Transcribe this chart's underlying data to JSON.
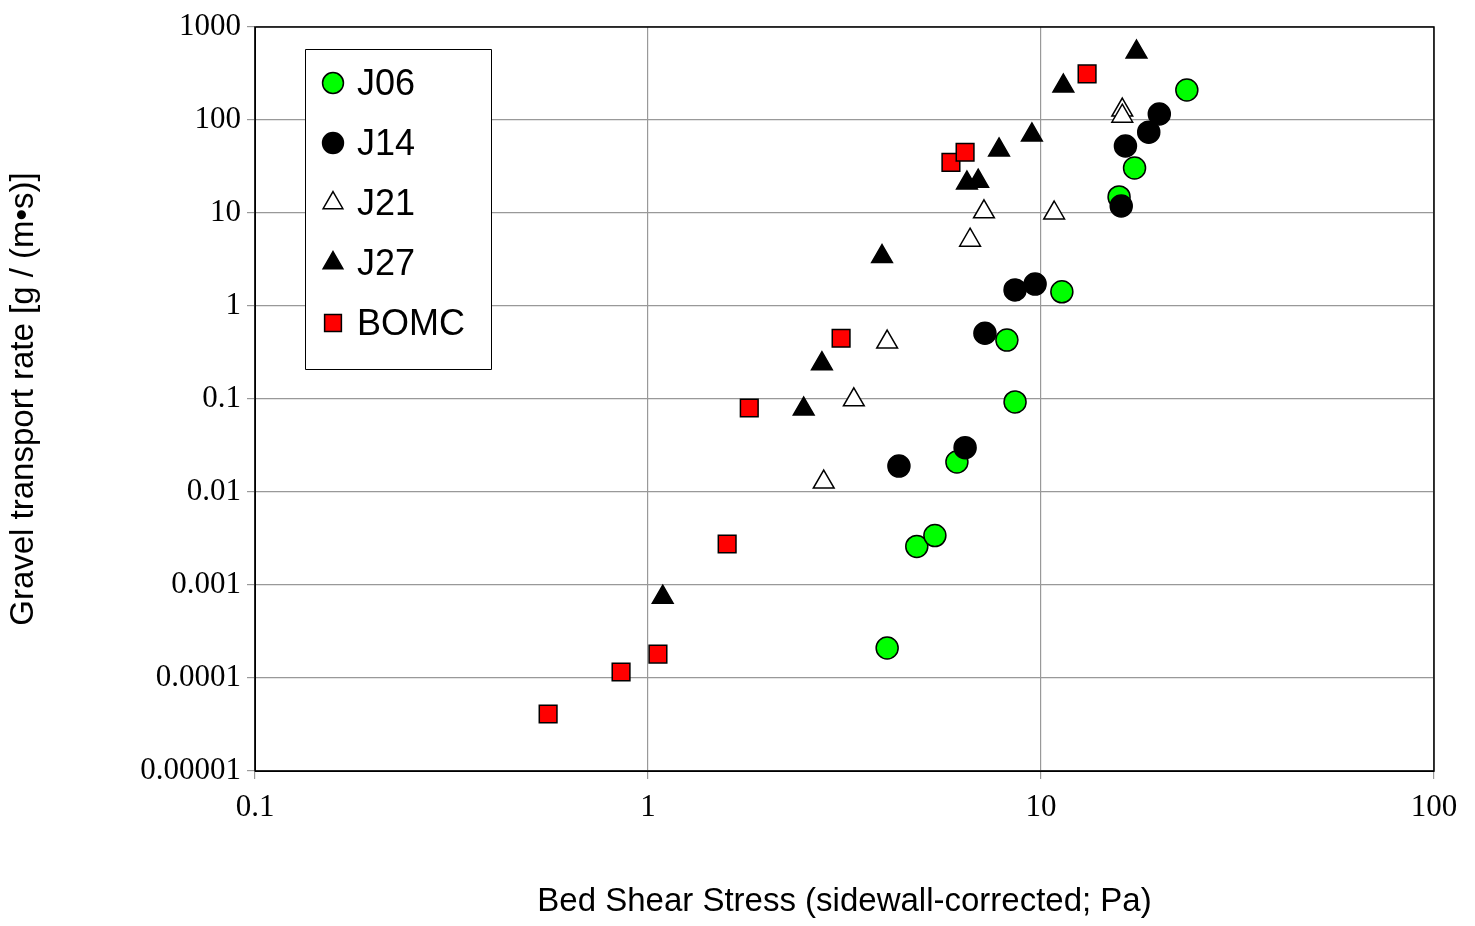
{
  "chart_data": {
    "type": "scatter",
    "xlabel": "Bed Shear Stress (sidewall-corrected; Pa)",
    "ylabel": "Gravel transport rate [g / (m•s)]",
    "log": "xy",
    "grid": true,
    "legend": "top left",
    "xlim": [
      0.1,
      100
    ],
    "xticks": [
      0.1,
      1,
      10,
      100
    ],
    "ylim": [
      1e-05,
      1000
    ],
    "yticks": [
      {
        "value": 1e-05,
        "label": "0.00001"
      },
      0.0001,
      0.001,
      0.01,
      0.1,
      1,
      10,
      100,
      1000
    ],
    "series": [
      {
        "name": "J06",
        "color": "#00ff00",
        "marker": "circle",
        "x": [
          4.06,
          4.83,
          5.37,
          6.11,
          8.59,
          8.19,
          11.3,
          15.8,
          17.3,
          23.5
        ],
        "values": [
          0.00021,
          0.0026,
          0.0034,
          0.021,
          0.093,
          0.43,
          1.42,
          14.9,
          30.5,
          210
        ]
      },
      {
        "name": "J14",
        "color": "#000000",
        "marker": "circle",
        "x": [
          4.35,
          6.41,
          7.2,
          8.59,
          9.66,
          16.0,
          16.4,
          18.8,
          20.0
        ],
        "values": [
          0.019,
          0.03,
          0.51,
          1.49,
          1.72,
          11.9,
          52.6,
          74,
          116
        ]
      },
      {
        "name": "J21",
        "color": "#ffffff",
        "marker": "triangle",
        "x": [
          2.8,
          3.34,
          4.06,
          6.6,
          7.16,
          10.8,
          16.1,
          16.1
        ],
        "values": [
          0.0128,
          0.098,
          0.41,
          5.1,
          10.3,
          10,
          128,
          110
        ]
      },
      {
        "name": "J27",
        "color": "#000000",
        "marker": "triangle",
        "x": [
          1.09,
          2.49,
          2.77,
          3.94,
          6.48,
          6.92,
          7.82,
          9.48,
          11.4,
          17.5
        ],
        "values": [
          0.00074,
          0.078,
          0.24,
          3.4,
          21,
          22,
          47.6,
          69,
          232,
          538
        ]
      },
      {
        "name": "BOMC",
        "color": "#ff0000",
        "marker": "square",
        "x": [
          0.557,
          0.854,
          1.06,
          1.59,
          1.81,
          3.1,
          5.9,
          6.41,
          13.1
        ],
        "values": [
          4.1e-05,
          0.000116,
          0.000181,
          0.00276,
          0.08,
          0.45,
          35,
          45,
          313
        ]
      }
    ]
  }
}
